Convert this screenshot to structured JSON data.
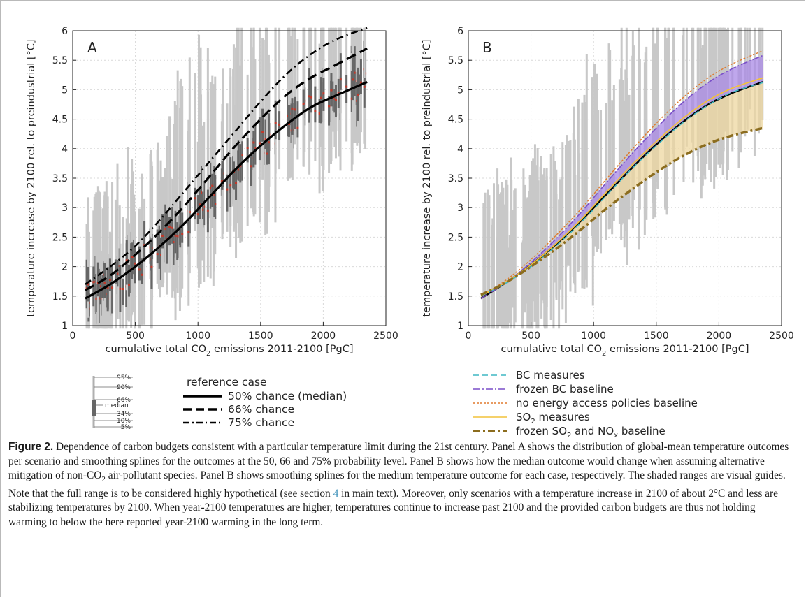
{
  "caption": {
    "label": "Figure 2.",
    "part1": " Dependence of carbon budgets consistent with a particular temperature limit during the 21st century. Panel A shows the distribution of global-mean temperature outcomes per scenario and smoothing splines for the outcomes at the 50, 66 and 75% probability level. Panel B shows how the median outcome would change when assuming alternative mitigation of non-CO",
    "sub2": "2",
    "part2": " air-pollutant species. Panel B shows smoothing splines for the medium temperature outcome for each case, respectively. The shaded ranges are visual guides. Note that the full range is to be considered highly hypothetical (see section ",
    "section": "4",
    "part3": " in main text). Moreover, only scenarios with a temperature increase in 2100 of about 2°C and less are stabilizing temperatures by 2100. When year-2100 temperatures are higher, temperatures continue to increase past 2100 and the provided carbon budgets are thus not holding warming to below the here reported year-2100 warming in the long term."
  },
  "percentile_guide": {
    "labels": [
      "95%",
      "90%",
      "66%",
      "median",
      "34%",
      "10%",
      "5%"
    ]
  },
  "legend_a": {
    "title": "reference case",
    "items": [
      "50% chance (median)",
      "66% chance",
      "75% chance"
    ]
  },
  "legend_b": {
    "items": [
      {
        "pre": "BC measures",
        "sub": "",
        "post": "",
        "sub2": "",
        "post2": ""
      },
      {
        "pre": "frozen BC baseline",
        "sub": "",
        "post": "",
        "sub2": "",
        "post2": ""
      },
      {
        "pre": "no energy access policies baseline",
        "sub": "",
        "post": "",
        "sub2": "",
        "post2": ""
      },
      {
        "pre": "SO",
        "sub": "2",
        "post": " measures",
        "sub2": "",
        "post2": ""
      },
      {
        "pre": "frozen SO",
        "sub": "2",
        "post": " and NO",
        "sub2": "x",
        "post2": " baseline"
      }
    ]
  },
  "colors": {
    "background": "#ffffff",
    "axis": "#222222",
    "grid": "#d9d9d9",
    "range_light": "#c8c8c8",
    "range_dark": "#666666",
    "median_dot": "#c0392b",
    "spline_black": "#000000",
    "bc_measures": "#3fb7c4",
    "frozen_bc": "#7a4fc9",
    "frozen_bc_fill": "#a98ae6",
    "no_energy": "#e07a2e",
    "so2_measures": "#f2c23a",
    "frozen_so2": "#8c6d1f",
    "so2_fill": "#eed7a0"
  },
  "chart_data": [
    {
      "type": "line",
      "panel_label": "A",
      "xlabel_pre": "cumulative total CO",
      "xlabel_sub": "2",
      "xlabel_post": " emissions 2011-2100 [PgC]",
      "ylabel": "temperature increase by 2100 rel. to preindustrial [°C]",
      "xlim": [
        0,
        2500
      ],
      "ylim": [
        1,
        6
      ],
      "xticks": [
        0,
        500,
        1000,
        1500,
        2000,
        2500
      ],
      "yticks": [
        1,
        1.5,
        2,
        2.5,
        3,
        3.5,
        4,
        4.5,
        5,
        5.5,
        6
      ],
      "grid": true,
      "series": [
        {
          "name": "50% chance (median)",
          "style": "solid",
          "x": [
            100,
            300,
            500,
            700,
            900,
            1100,
            1300,
            1500,
            1700,
            1900,
            2100,
            2350
          ],
          "y": [
            1.46,
            1.7,
            2.0,
            2.35,
            2.75,
            3.2,
            3.65,
            4.05,
            4.4,
            4.7,
            4.9,
            5.13
          ]
        },
        {
          "name": "66% chance",
          "style": "dashed",
          "x": [
            100,
            300,
            500,
            700,
            900,
            1100,
            1300,
            1500,
            1700,
            1900,
            2100,
            2350
          ],
          "y": [
            1.6,
            1.85,
            2.2,
            2.6,
            3.05,
            3.55,
            4.05,
            4.5,
            4.9,
            5.2,
            5.42,
            5.7
          ]
        },
        {
          "name": "75% chance",
          "style": "dashdot",
          "x": [
            100,
            300,
            500,
            700,
            900,
            1100,
            1300,
            1500,
            1700,
            1900,
            2100,
            2350
          ],
          "y": [
            1.7,
            2.0,
            2.35,
            2.8,
            3.3,
            3.8,
            4.3,
            4.8,
            5.25,
            5.6,
            5.85,
            6.05
          ]
        }
      ]
    },
    {
      "type": "area",
      "panel_label": "B",
      "xlabel_pre": "cumulative total CO",
      "xlabel_sub": "2",
      "xlabel_post": " emissions 2011-2100 [PgC]",
      "ylabel": "temperature increase by 2100 rel. to preindustrial [°C]",
      "xlim": [
        0,
        2500
      ],
      "ylim": [
        1,
        6
      ],
      "xticks": [
        0,
        500,
        1000,
        1500,
        2000,
        2500
      ],
      "yticks": [
        1,
        1.5,
        2,
        2.5,
        3,
        3.5,
        4,
        4.5,
        5,
        5.5,
        6
      ],
      "grid": true,
      "x": [
        100,
        300,
        500,
        700,
        900,
        1100,
        1300,
        1500,
        1700,
        1900,
        2100,
        2350
      ],
      "series": [
        {
          "name": "BC measures",
          "style": "dashed",
          "y": [
            1.5,
            1.72,
            2.0,
            2.35,
            2.75,
            3.2,
            3.65,
            4.05,
            4.42,
            4.72,
            4.95,
            5.12
          ]
        },
        {
          "name": "frozen BC baseline",
          "style": "dashdot",
          "y": [
            1.46,
            1.73,
            2.07,
            2.47,
            2.92,
            3.42,
            3.9,
            4.35,
            4.76,
            5.1,
            5.35,
            5.58
          ]
        },
        {
          "name": "no energy access policies baseline",
          "style": "dotted",
          "y": [
            1.5,
            1.77,
            2.12,
            2.53,
            2.98,
            3.48,
            3.97,
            4.43,
            4.84,
            5.18,
            5.43,
            5.66
          ]
        },
        {
          "name": "SO2 measures",
          "style": "solid",
          "y": [
            1.5,
            1.74,
            2.03,
            2.39,
            2.8,
            3.26,
            3.71,
            4.12,
            4.49,
            4.8,
            5.02,
            5.2
          ]
        },
        {
          "name": "frozen SO2 and NOx baseline",
          "style": "dashdot-thick",
          "y": [
            1.52,
            1.73,
            2.0,
            2.3,
            2.63,
            2.98,
            3.3,
            3.6,
            3.86,
            4.07,
            4.22,
            4.35
          ]
        },
        {
          "name": "reference median",
          "style": "solid-black",
          "y": [
            1.46,
            1.73,
            2.03,
            2.38,
            2.78,
            3.22,
            3.66,
            4.07,
            4.43,
            4.73,
            4.94,
            5.13
          ]
        }
      ]
    }
  ]
}
